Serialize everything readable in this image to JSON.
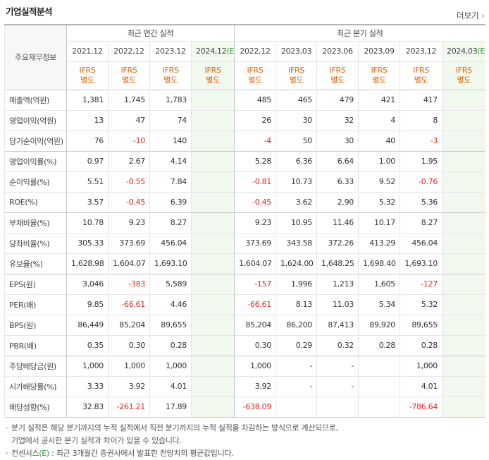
{
  "header": {
    "title": "기업실적분석",
    "more": "더보기"
  },
  "table": {
    "corner": "주요재무정보",
    "groups": [
      {
        "title": "최근 연간 실적",
        "periods": [
          {
            "period": "2021,12",
            "standard": "IFRS",
            "basis": "별도"
          },
          {
            "period": "2022,12",
            "standard": "IFRS",
            "basis": "별도"
          },
          {
            "period": "2023,12",
            "standard": "IFRS",
            "basis": "별도"
          },
          {
            "period": "2024,12",
            "mark": "(E)",
            "standard": "IFRS",
            "basis": "별도"
          }
        ]
      },
      {
        "title": "최근 분기 실적",
        "periods": [
          {
            "period": "2022,12",
            "standard": "IFRS",
            "basis": "별도"
          },
          {
            "period": "2023,03",
            "standard": "IFRS",
            "basis": "별도"
          },
          {
            "period": "2023,06",
            "standard": "IFRS",
            "basis": "별도"
          },
          {
            "period": "2023,09",
            "standard": "IFRS",
            "basis": "별도"
          },
          {
            "period": "2023,12",
            "standard": "IFRS",
            "basis": "별도"
          },
          {
            "period": "2024,03",
            "mark": "(E)",
            "standard": "IFRS",
            "basis": "별도"
          }
        ]
      }
    ],
    "row_groups": [
      [
        {
          "label": "매출액(억원)",
          "values": [
            "1,381",
            "1,745",
            "1,783",
            null,
            "485",
            "465",
            "479",
            "421",
            "417",
            null
          ]
        },
        {
          "label": "영업이익(억원)",
          "values": [
            "13",
            "47",
            "74",
            null,
            "26",
            "30",
            "32",
            "4",
            "8",
            null
          ]
        },
        {
          "label": "당기순이익(억원)",
          "values": [
            "76",
            "-10",
            "140",
            null,
            "-4",
            "50",
            "30",
            "40",
            "-3",
            null
          ]
        }
      ],
      [
        {
          "label": "영업이익률(%)",
          "values": [
            "0.97",
            "2.67",
            "4.14",
            null,
            "5.28",
            "6.36",
            "6.64",
            "1.00",
            "1.95",
            null
          ]
        },
        {
          "label": "순이익률(%)",
          "values": [
            "5.51",
            "-0.55",
            "7.84",
            null,
            "-0.81",
            "10.73",
            "6.33",
            "9.52",
            "-0.76",
            null
          ]
        },
        {
          "label": "ROE(%)",
          "values": [
            "3.57",
            "-0.45",
            "6.39",
            null,
            "-0.45",
            "3.62",
            "2.90",
            "5.32",
            "5.36",
            null
          ]
        }
      ],
      [
        {
          "label": "부채비율(%)",
          "values": [
            "10.78",
            "9.23",
            "8.27",
            null,
            "9.23",
            "10.95",
            "11.46",
            "10.17",
            "8.27",
            null
          ]
        },
        {
          "label": "당좌비율(%)",
          "values": [
            "305.33",
            "373.69",
            "456.04",
            null,
            "373.69",
            "343.58",
            "372.26",
            "413.29",
            "456.04",
            null
          ]
        },
        {
          "label": "유보율(%)",
          "values": [
            "1,628.98",
            "1,604.07",
            "1,693.10",
            null,
            "1,604.07",
            "1,624.00",
            "1,648.25",
            "1,698.40",
            "1,693.10",
            null
          ]
        }
      ],
      [
        {
          "label": "EPS(원)",
          "values": [
            "3,046",
            "-383",
            "5,589",
            null,
            "-157",
            "1,996",
            "1,213",
            "1,605",
            "-127",
            null
          ]
        },
        {
          "label": "PER(배)",
          "values": [
            "9.85",
            "-66.61",
            "4.46",
            null,
            "-66.61",
            "8.13",
            "11.03",
            "5.34",
            "5.32",
            null
          ]
        },
        {
          "label": "BPS(원)",
          "values": [
            "86,449",
            "85,204",
            "89,655",
            null,
            "85,204",
            "86,200",
            "87,413",
            "89,920",
            "89,655",
            null
          ]
        },
        {
          "label": "PBR(배)",
          "values": [
            "0.35",
            "0.30",
            "0.28",
            null,
            "0.30",
            "0.29",
            "0.32",
            "0.28",
            "0.28",
            null
          ]
        }
      ],
      [
        {
          "label": "주당배당금(원)",
          "values": [
            "1,000",
            "1,000",
            "1,000",
            null,
            "1,000",
            "-",
            "-",
            null,
            "1,000",
            null
          ]
        },
        {
          "label": "시가배당률(%)",
          "values": [
            "3.33",
            "3.92",
            "4.01",
            null,
            "3.92",
            "-",
            "-",
            null,
            "4.01",
            null
          ]
        },
        {
          "label": "배당성향(%)",
          "values": [
            "32.83",
            "-261.21",
            "17.89",
            null,
            "-638.09",
            null,
            null,
            null,
            "-786.64",
            null
          ]
        }
      ]
    ]
  },
  "notes": [
    {
      "lines": [
        "분기 실적은 해당 분기까지의 누적 실적에서 직전 분기까지의 누적 실적을 차감하는 방식으로 계산되므로,",
        "기업에서 공시한 분기 실적과 차이가 있을 수 있습니다."
      ]
    },
    {
      "lines": [
        "컨센서스"
      ],
      "mark": "(E)",
      "tail": " : 최근 3개월간 증권사에서 발표한 전망치의 평균값입니다."
    }
  ]
}
